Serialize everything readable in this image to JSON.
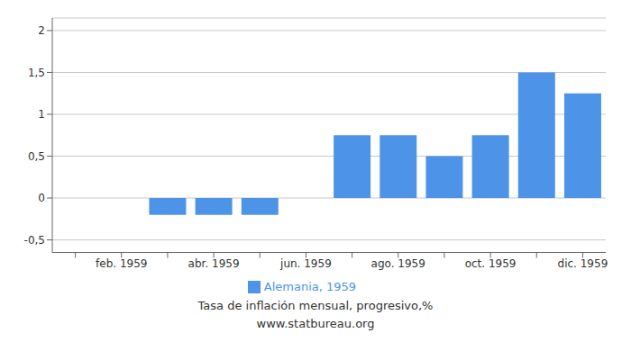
{
  "chart_data": {
    "type": "bar",
    "title": "Tasa de inflación mensual, progresivo,%",
    "subtitle": "www.statbureau.org",
    "categories": [
      null,
      "feb. 1959",
      null,
      "abr. 1959",
      null,
      "jun. 1959",
      null,
      "ago. 1959",
      null,
      "oct. 1959",
      null,
      "dic. 1959"
    ],
    "series": [
      {
        "name": "Alemania, 1959",
        "color": "#4d94e8",
        "values": [
          0.0,
          0.0,
          -0.2,
          -0.2,
          -0.2,
          0.0,
          0.75,
          0.75,
          0.5,
          0.75,
          1.5,
          1.25
        ]
      }
    ],
    "ylim": [
      -0.65,
      2.15
    ],
    "yticks": [
      {
        "value": -0.5,
        "label": "-0,5"
      },
      0,
      {
        "value": 0.5,
        "label": "0,5"
      },
      1,
      {
        "value": 1.5,
        "label": "1,5"
      },
      2
    ],
    "grid": true,
    "legend": "bottom"
  }
}
